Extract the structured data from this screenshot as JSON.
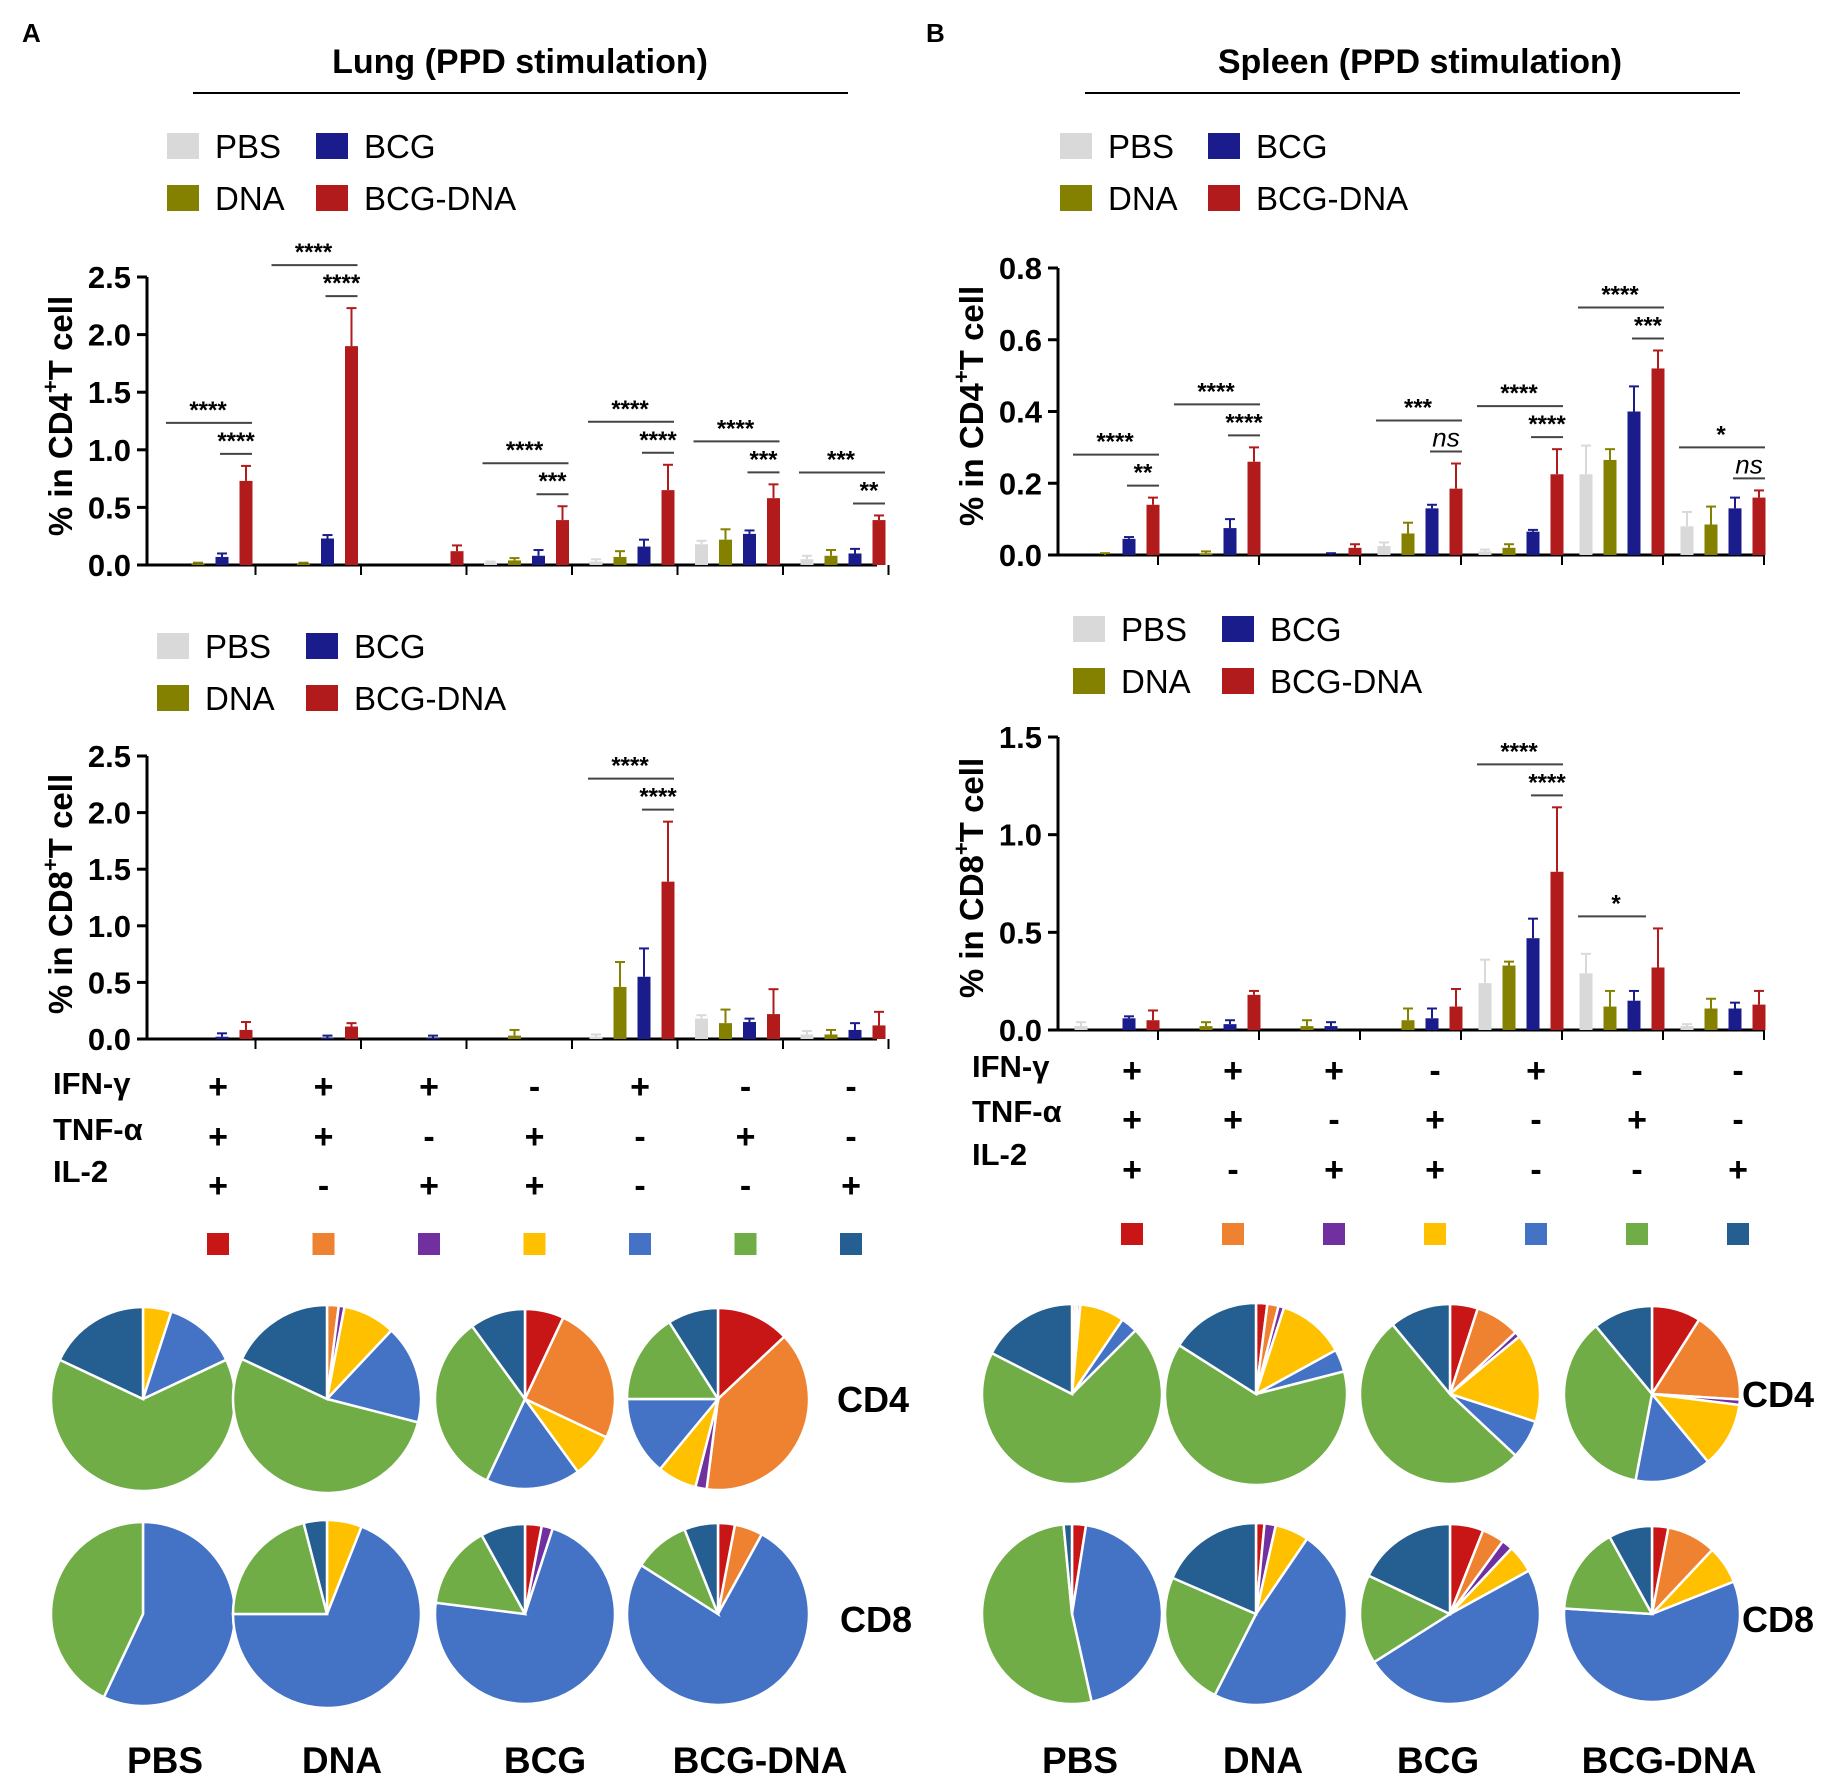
{
  "colors": {
    "PBS": "#d9d9d9",
    "BCG": "#1a1c8c",
    "DNA": "#848000",
    "BCG-DNA": "#b21b1c",
    "combo": [
      "#c81616",
      "#ee8231",
      "#7030a0",
      "#ffc000",
      "#4472c4",
      "#70ad47",
      "#255e91"
    ]
  },
  "panels": [
    {
      "letter": "A",
      "title": "Lung (PPD stimulation)",
      "legend": [
        "PBS",
        "BCG",
        "DNA",
        "BCG-DNA"
      ],
      "cytokines": {
        "labels": [
          "IFN-γ",
          "TNF-α",
          "IL-2"
        ],
        "rows": [
          [
            "+",
            "+",
            "+",
            "-",
            "+",
            "-",
            "-"
          ],
          [
            "+",
            "+",
            "-",
            "+",
            "-",
            "+",
            "-"
          ],
          [
            "+",
            "-",
            "+",
            "+",
            "-",
            "-",
            "+"
          ]
        ]
      },
      "pie_groups": [
        "PBS",
        "DNA",
        "BCG",
        "BCG-DNA"
      ],
      "pie_rows": [
        "CD4",
        "CD8"
      ]
    },
    {
      "letter": "B",
      "title": "Spleen (PPD stimulation)",
      "legend": [
        "PBS",
        "BCG",
        "DNA",
        "BCG-DNA"
      ],
      "cytokines": {
        "labels": [
          "IFN-γ",
          "TNF-α",
          "IL-2"
        ],
        "rows": [
          [
            "+",
            "+",
            "+",
            "-",
            "+",
            "-",
            "-"
          ],
          [
            "+",
            "+",
            "-",
            "+",
            "-",
            "+",
            "-"
          ],
          [
            "+",
            "-",
            "+",
            "+",
            "-",
            "-",
            "+"
          ]
        ]
      },
      "pie_groups": [
        "PBS",
        "DNA",
        "BCG",
        "BCG-DNA"
      ],
      "pie_rows": [
        "CD4",
        "CD8"
      ]
    }
  ],
  "chart_data": [
    {
      "id": "lung-cd4",
      "type": "bar",
      "panel": "A",
      "ylabel_pre": "% in CD4",
      "ylabel_sup": "+",
      "ylabel_post": "T cell",
      "ylim": [
        0,
        2.5
      ],
      "yticks": [
        "0.0",
        "0.5",
        "1.0",
        "1.5",
        "2.0",
        "2.5"
      ],
      "series_order": [
        "PBS",
        "DNA",
        "BCG",
        "BCG-DNA"
      ],
      "groups": [
        {
          "values": [
            0.0,
            0.01,
            0.07,
            0.73
          ],
          "errors": [
            0,
            0.01,
            0.03,
            0.13
          ],
          "sig": [
            "****",
            "****"
          ]
        },
        {
          "values": [
            0.0,
            0.01,
            0.23,
            1.9
          ],
          "errors": [
            0,
            0.01,
            0.03,
            0.33
          ],
          "sig": [
            "****",
            "****"
          ]
        },
        {
          "values": [
            0.0,
            0.0,
            0.0,
            0.12
          ],
          "errors": [
            0,
            0,
            0,
            0.05
          ],
          "sig": []
        },
        {
          "values": [
            0.02,
            0.04,
            0.08,
            0.39
          ],
          "errors": [
            0.01,
            0.02,
            0.05,
            0.12
          ],
          "sig": [
            "****",
            "***"
          ]
        },
        {
          "values": [
            0.03,
            0.07,
            0.16,
            0.65
          ],
          "errors": [
            0.02,
            0.05,
            0.06,
            0.22
          ],
          "sig": [
            "****",
            "****"
          ]
        },
        {
          "values": [
            0.18,
            0.22,
            0.27,
            0.58
          ],
          "errors": [
            0.03,
            0.09,
            0.03,
            0.12
          ],
          "sig": [
            "****",
            "***"
          ]
        },
        {
          "values": [
            0.05,
            0.08,
            0.1,
            0.39
          ],
          "errors": [
            0.03,
            0.05,
            0.04,
            0.04
          ],
          "sig": [
            "***",
            "**"
          ]
        }
      ]
    },
    {
      "id": "lung-cd8",
      "type": "bar",
      "panel": "A",
      "ylabel_pre": "% in CD8",
      "ylabel_sup": "+",
      "ylabel_post": "T cell",
      "ylim": [
        0,
        2.5
      ],
      "yticks": [
        "0.0",
        "0.5",
        "1.0",
        "1.5",
        "2.0",
        "2.5"
      ],
      "series_order": [
        "PBS",
        "DNA",
        "BCG",
        "BCG-DNA"
      ],
      "groups": [
        {
          "values": [
            0.0,
            0.0,
            0.02,
            0.08
          ],
          "errors": [
            0,
            0,
            0.03,
            0.07
          ],
          "sig": []
        },
        {
          "values": [
            0.0,
            0.0,
            0.01,
            0.11
          ],
          "errors": [
            0,
            0,
            0.02,
            0.03
          ],
          "sig": []
        },
        {
          "values": [
            0.0,
            0.0,
            0.01,
            0.0
          ],
          "errors": [
            0,
            0,
            0.02,
            0
          ],
          "sig": []
        },
        {
          "values": [
            0.0,
            0.03,
            0.0,
            0.0
          ],
          "errors": [
            0,
            0.05,
            0,
            0
          ],
          "sig": []
        },
        {
          "values": [
            0.02,
            0.46,
            0.55,
            1.39
          ],
          "errors": [
            0.02,
            0.22,
            0.25,
            0.53
          ],
          "sig": [
            "****",
            "****"
          ]
        },
        {
          "values": [
            0.18,
            0.14,
            0.15,
            0.22
          ],
          "errors": [
            0.03,
            0.12,
            0.03,
            0.22
          ],
          "sig": []
        },
        {
          "values": [
            0.04,
            0.04,
            0.08,
            0.12
          ],
          "errors": [
            0.03,
            0.04,
            0.06,
            0.12
          ],
          "sig": []
        }
      ]
    },
    {
      "id": "spleen-cd4",
      "type": "bar",
      "panel": "B",
      "ylabel_pre": "% in CD4",
      "ylabel_sup": "+",
      "ylabel_post": "T cell",
      "ylim": [
        0,
        0.8
      ],
      "yticks": [
        "0.0",
        "0.2",
        "0.4",
        "0.6",
        "0.8"
      ],
      "series_order": [
        "PBS",
        "DNA",
        "BCG",
        "BCG-DNA"
      ],
      "groups": [
        {
          "values": [
            0.0,
            0.0,
            0.045,
            0.14
          ],
          "errors": [
            0,
            0.005,
            0.005,
            0.02
          ],
          "sig": [
            "****",
            "**"
          ]
        },
        {
          "values": [
            0.0,
            0.005,
            0.075,
            0.26
          ],
          "errors": [
            0,
            0.005,
            0.025,
            0.04
          ],
          "sig": [
            "****",
            "****"
          ]
        },
        {
          "values": [
            0.0,
            0.0,
            0.0,
            0.02
          ],
          "errors": [
            0,
            0,
            0.005,
            0.01
          ],
          "sig": []
        },
        {
          "values": [
            0.025,
            0.06,
            0.13,
            0.185
          ],
          "errors": [
            0.01,
            0.03,
            0.01,
            0.07
          ],
          "sig": [
            "***",
            "ns"
          ]
        },
        {
          "values": [
            0.01,
            0.02,
            0.065,
            0.225
          ],
          "errors": [
            0.005,
            0.01,
            0.005,
            0.07
          ],
          "sig": [
            "****",
            "****"
          ]
        },
        {
          "values": [
            0.225,
            0.265,
            0.4,
            0.52
          ],
          "errors": [
            0.08,
            0.03,
            0.07,
            0.05
          ],
          "sig": [
            "****",
            "***"
          ]
        },
        {
          "values": [
            0.08,
            0.085,
            0.13,
            0.16
          ],
          "errors": [
            0.04,
            0.05,
            0.03,
            0.02
          ],
          "sig": [
            "*",
            "ns"
          ]
        }
      ]
    },
    {
      "id": "spleen-cd8",
      "type": "bar",
      "panel": "B",
      "ylabel_pre": "% in CD8",
      "ylabel_sup": "+",
      "ylabel_post": "T cell",
      "ylim": [
        0,
        1.5
      ],
      "yticks": [
        "0.0",
        "0.5",
        "1.0",
        "1.5"
      ],
      "series_order": [
        "PBS",
        "DNA",
        "BCG",
        "BCG-DNA"
      ],
      "groups": [
        {
          "values": [
            0.02,
            0.0,
            0.06,
            0.05
          ],
          "errors": [
            0.02,
            0,
            0.01,
            0.05
          ],
          "sig": []
        },
        {
          "values": [
            0.0,
            0.02,
            0.03,
            0.18
          ],
          "errors": [
            0,
            0.02,
            0.02,
            0.02
          ],
          "sig": []
        },
        {
          "values": [
            0.0,
            0.02,
            0.02,
            0.0
          ],
          "errors": [
            0,
            0.03,
            0.02,
            0
          ],
          "sig": []
        },
        {
          "values": [
            0.0,
            0.05,
            0.06,
            0.12
          ],
          "errors": [
            0,
            0.06,
            0.05,
            0.09
          ],
          "sig": []
        },
        {
          "values": [
            0.24,
            0.33,
            0.47,
            0.81
          ],
          "errors": [
            0.12,
            0.02,
            0.1,
            0.33
          ],
          "sig": [
            "****",
            "****"
          ]
        },
        {
          "values": [
            0.29,
            0.12,
            0.15,
            0.32
          ],
          "errors": [
            0.1,
            0.08,
            0.05,
            0.2
          ],
          "sig": [
            "*"
          ]
        },
        {
          "values": [
            0.02,
            0.11,
            0.11,
            0.13
          ],
          "errors": [
            0.01,
            0.05,
            0.03,
            0.07
          ],
          "sig": []
        }
      ]
    },
    {
      "id": "lung-pies",
      "type": "pie",
      "panel": "A",
      "categories": [
        "IFN-γ+TNF-α+IL-2+",
        "IFN-γ+TNF-α+",
        "IFN-γ+IL-2+",
        "TNF-α+IL-2+",
        "IFN-γ+",
        "TNF-α+",
        "IL-2+"
      ],
      "pies": {
        "CD4": [
          [
            0,
            0,
            0,
            5,
            13,
            64,
            18
          ],
          [
            0,
            2,
            1,
            9,
            17,
            53,
            18
          ],
          [
            7,
            25,
            0,
            8,
            17,
            33,
            10
          ],
          [
            13,
            39,
            2,
            7,
            14,
            16,
            9
          ]
        ],
        "CD8": [
          [
            0,
            0,
            0,
            0,
            57,
            43,
            0
          ],
          [
            0,
            0,
            0,
            6,
            69,
            21,
            4
          ],
          [
            3,
            0,
            2,
            0,
            72,
            15,
            8
          ],
          [
            3,
            5,
            0,
            0,
            76,
            10,
            6
          ]
        ]
      }
    },
    {
      "id": "spleen-pies",
      "type": "pie",
      "panel": "B",
      "categories": [
        "IFN-γ+TNF-α+IL-2+",
        "IFN-γ+TNF-α+",
        "IFN-γ+IL-2+",
        "TNF-α+IL-2+",
        "IFN-γ+",
        "TNF-α+",
        "IL-2+"
      ],
      "pies": {
        "CD4": [
          [
            0.5,
            0.5,
            0.5,
            8,
            3,
            70,
            17.5
          ],
          [
            2,
            2,
            1,
            12,
            4,
            63,
            16
          ],
          [
            5,
            8,
            1,
            16,
            7,
            52,
            11
          ],
          [
            9,
            17,
            1,
            12,
            14,
            36,
            11
          ]
        ],
        "CD8": [
          [
            2.5,
            0,
            0,
            0,
            44,
            52,
            1.5
          ],
          [
            1.5,
            0,
            2,
            6,
            48,
            24,
            18.5
          ],
          [
            6,
            4,
            2,
            5,
            49,
            16,
            18
          ],
          [
            3,
            9,
            0,
            7,
            57,
            16,
            8
          ]
        ]
      }
    }
  ]
}
